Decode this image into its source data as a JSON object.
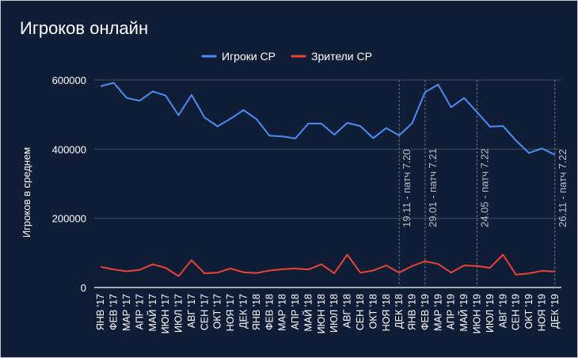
{
  "chart_data": {
    "type": "line",
    "title": "Игроков онлайн",
    "ylabel": "Игроков в среднем",
    "xlabel": "",
    "ylim": [
      0,
      600000
    ],
    "yticks": [
      0,
      200000,
      400000,
      600000
    ],
    "ytick_labels": [
      "0",
      "200000",
      "400000",
      "600000"
    ],
    "grid": true,
    "legend_position": "top-center",
    "categories": [
      "ЯНВ '17",
      "ФЕВ '17",
      "МАР '17",
      "АПР '17",
      "МАЙ '17",
      "ИЮН '17",
      "ИЮЛ '17",
      "АВГ '17",
      "СЕН '17",
      "ОКТ '17",
      "НОЯ '17",
      "ДЕК '17",
      "ЯНВ '18",
      "ФЕВ '18",
      "МАР '18",
      "АПР '18",
      "МАЙ '18",
      "ИЮН '18",
      "ИЮЛ '18",
      "АВГ '18",
      "СЕН '18",
      "ОКТ '18",
      "НОЯ '18",
      "ДЕК '18",
      "ЯНВ '19",
      "ФЕВ '19",
      "МАР '19",
      "АПР '19",
      "МАЙ '19",
      "ИЮН '19",
      "ИЮЛ '19",
      "АВГ '19",
      "СЕН '19",
      "ОКТ '19",
      "НОЯ '19",
      "ДЕК '19"
    ],
    "series": [
      {
        "name": "Игроки CP",
        "color": "#4c8bf5",
        "values": [
          582000,
          592000,
          548000,
          540000,
          567000,
          555000,
          498000,
          557000,
          492000,
          466000,
          488000,
          513000,
          487000,
          439000,
          437000,
          431000,
          474000,
          474000,
          442000,
          476000,
          467000,
          432000,
          461000,
          440000,
          475000,
          565000,
          587000,
          521000,
          548000,
          507000,
          465000,
          467000,
          425000,
          389000,
          402000,
          384000
        ]
      },
      {
        "name": "Зрители CP",
        "color": "#ea4335",
        "values": [
          60000,
          52000,
          47000,
          51000,
          67000,
          57000,
          33000,
          79000,
          41000,
          43000,
          55000,
          44000,
          42000,
          49000,
          53000,
          55000,
          52000,
          67000,
          41000,
          95000,
          43000,
          49000,
          64000,
          43000,
          62000,
          76000,
          68000,
          43000,
          64000,
          62000,
          57000,
          95000,
          37000,
          41000,
          48000,
          46000
        ]
      }
    ],
    "annotations": [
      {
        "category": "ДЕК '18",
        "label": "19.11 - патч 7.20"
      },
      {
        "category": "ФЕВ '19",
        "label": "29.01 - патч 7.21"
      },
      {
        "category": "ИЮН '19",
        "label": "24.05 - патч 7.22"
      },
      {
        "category": "ДЕК '19",
        "label": "26.11 - патч 7.22"
      }
    ]
  },
  "colors": {
    "background": "#0f1e36",
    "grid": "#3f4a5e",
    "annotation_line": "#6a7282",
    "text": "#ffffff"
  }
}
